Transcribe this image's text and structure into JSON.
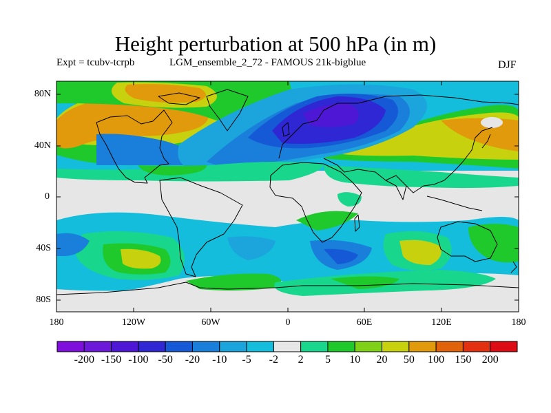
{
  "title": "Height perturbation at 500 hPa (in m)",
  "experiment": "Expt = tcubv-tcrpb",
  "run": "LGM_ensemble_2_72 - FAMOUS 21k-bigblue",
  "season": "DJF",
  "lat_labels": [
    "80N",
    "40N",
    "0",
    "40S",
    "80S"
  ],
  "lon_labels": [
    "180",
    "120W",
    "60W",
    "0",
    "60E",
    "120E",
    "180"
  ],
  "colorbar": {
    "labels": [
      "-200",
      "-150",
      "-100",
      "-50",
      "-20",
      "-10",
      "-5",
      "-2",
      "2",
      "5",
      "10",
      "20",
      "50",
      "100",
      "150",
      "200"
    ],
    "colors": [
      "#7e0fdc",
      "#6c19da",
      "#4e17d6",
      "#2f27d4",
      "#1559d6",
      "#1a7fda",
      "#1ca4dd",
      "#14bddb",
      "#e6e6e6",
      "#19d68d",
      "#1fc92c",
      "#7fd117",
      "#c8d10d",
      "#e09a0b",
      "#e0620a",
      "#e23010",
      "#dd0c14"
    ]
  },
  "map_colors": {
    "land_outline": "#000000",
    "background": "#e6e6e6"
  }
}
